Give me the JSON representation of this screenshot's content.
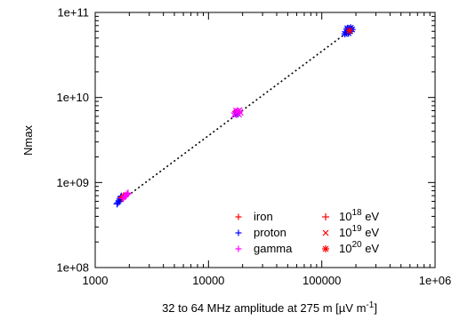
{
  "chart_data": {
    "type": "scatter",
    "xlabel_prefix": "32 to 64 MHz amplitude at 275 m [",
    "xlabel_unit_mu": "µ",
    "xlabel_unit_rest": "V m",
    "xlabel_unit_exp": "-1",
    "xlabel_suffix": "]",
    "ylabel": "Nmax",
    "xscale": "log",
    "yscale": "log",
    "xlim": [
      1000,
      1000000
    ],
    "ylim": [
      100000000,
      100000000000
    ],
    "xticks": [
      {
        "value": 1000,
        "label": "1000"
      },
      {
        "value": 10000,
        "label": "10000"
      },
      {
        "value": 100000,
        "label": "100000"
      },
      {
        "value": 1000000,
        "label": "1e+06"
      }
    ],
    "yticks": [
      {
        "value": 100000000,
        "label": "1e+08"
      },
      {
        "value": 1000000000,
        "label": "1e+09"
      },
      {
        "value": 10000000000,
        "label": "1e+10"
      },
      {
        "value": 100000000000,
        "label": "1e+11"
      }
    ],
    "grid": false,
    "legend_position": "bottom-right",
    "fit_line": {
      "style": "dotted",
      "color": "#000000",
      "x": [
        1550,
        190000
      ],
      "y": [
        560000000,
        66000000000
      ]
    },
    "particles": [
      {
        "name": "iron",
        "color": "#ff0000"
      },
      {
        "name": "proton",
        "color": "#0000ff"
      },
      {
        "name": "gamma",
        "color": "#ff00ff"
      }
    ],
    "energies": [
      {
        "base": "10",
        "exp": "18",
        "unit": "eV",
        "marker": "plus"
      },
      {
        "base": "10",
        "exp": "19",
        "unit": "eV",
        "marker": "cross"
      },
      {
        "base": "10",
        "exp": "20",
        "unit": "eV",
        "marker": "star"
      }
    ],
    "series": [
      {
        "particle": "proton",
        "energy": "10^18 eV",
        "marker": "plus",
        "color": "#0000ff",
        "points": [
          [
            1560,
            560000000
          ],
          [
            1590,
            580000000
          ],
          [
            1620,
            610000000
          ],
          [
            1650,
            640000000
          ],
          [
            1680,
            670000000
          ],
          [
            1700,
            690000000
          ],
          [
            1640,
            600000000
          ]
        ]
      },
      {
        "particle": "iron",
        "energy": "10^18 eV",
        "marker": "plus",
        "color": "#ff0000",
        "points": [
          [
            1720,
            660000000
          ],
          [
            1760,
            680000000
          ],
          [
            1790,
            700000000
          ]
        ]
      },
      {
        "particle": "gamma",
        "energy": "10^18 eV",
        "marker": "plus",
        "color": "#ff00ff",
        "points": [
          [
            1770,
            650000000
          ],
          [
            1820,
            680000000
          ],
          [
            1870,
            710000000
          ],
          [
            1920,
            730000000
          ],
          [
            1950,
            750000000
          ],
          [
            1850,
            690000000
          ]
        ]
      },
      {
        "particle": "iron",
        "energy": "10^19 eV",
        "marker": "cross",
        "color": "#ff0000",
        "points": [
          [
            17200,
            6400000000
          ],
          [
            17600,
            6600000000
          ],
          [
            18000,
            6800000000
          ]
        ]
      },
      {
        "particle": "proton",
        "energy": "10^19 eV",
        "marker": "cross",
        "color": "#0000ff",
        "points": [
          [
            17400,
            6300000000
          ],
          [
            17900,
            6500000000
          ]
        ]
      },
      {
        "particle": "gamma",
        "energy": "10^19 eV",
        "marker": "cross",
        "color": "#ff00ff",
        "points": [
          [
            16800,
            6200000000
          ],
          [
            17300,
            6500000000
          ],
          [
            17800,
            6700000000
          ],
          [
            18300,
            6900000000
          ],
          [
            18800,
            7100000000
          ],
          [
            19200,
            6600000000
          ],
          [
            18600,
            6300000000
          ],
          [
            17500,
            7000000000
          ]
        ]
      },
      {
        "particle": "proton",
        "energy": "10^20 eV",
        "marker": "star",
        "color": "#0000ff",
        "points": [
          [
            160000,
            56000000000
          ],
          [
            165000,
            59000000000
          ],
          [
            170000,
            62000000000
          ],
          [
            175000,
            64000000000
          ],
          [
            180000,
            66000000000
          ],
          [
            185000,
            63000000000
          ],
          [
            178000,
            60000000000
          ],
          [
            172000,
            57000000000
          ],
          [
            168000,
            65000000000
          ]
        ]
      },
      {
        "particle": "iron",
        "energy": "10^20 eV",
        "marker": "star",
        "color": "#ff0000",
        "points": [
          [
            176000,
            61000000000
          ]
        ]
      }
    ]
  }
}
